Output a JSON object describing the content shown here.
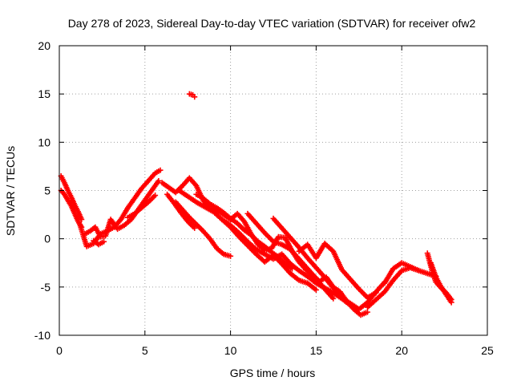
{
  "chart_data": {
    "type": "scatter",
    "title": "Day 278 of 2023, Sidereal Day-to-day VTEC variation (SDTVAR) for receiver ofw2",
    "xlabel": "GPS time / hours",
    "ylabel": "SDTVAR / TECUs",
    "xlim": [
      0,
      25
    ],
    "ylim": [
      -10,
      20
    ],
    "x_ticks": [
      0,
      5,
      10,
      15,
      20,
      25
    ],
    "y_ticks": [
      -10,
      -5,
      0,
      5,
      10,
      15,
      20
    ],
    "grid": true,
    "marker": "+",
    "colors": {
      "series": "#ff0000",
      "grid": "#a0a0a0",
      "frame": "#000000"
    },
    "series": [
      {
        "name": "SDTVAR",
        "tracks": [
          {
            "x": [
              0.1,
              0.3,
              0.5,
              0.7,
              0.9,
              1.1,
              1.3
            ],
            "y": [
              6.5,
              5.8,
              5.0,
              4.3,
              3.5,
              2.8,
              2.0
            ]
          },
          {
            "x": [
              0.1,
              0.3,
              0.5,
              0.7,
              0.9,
              1.1,
              1.3
            ],
            "y": [
              5.0,
              4.6,
              4.0,
              3.4,
              2.6,
              1.8,
              1.2
            ]
          },
          {
            "x": [
              1.2,
              1.6,
              2.0,
              2.4,
              2.8,
              3.2,
              3.6,
              4.0,
              4.4,
              4.8,
              5.2,
              5.6,
              5.9
            ],
            "y": [
              1.5,
              -0.8,
              -0.5,
              0.5,
              0.8,
              1.2,
              2.0,
              3.2,
              4.2,
              5.2,
              6.0,
              6.8,
              7.1
            ]
          },
          {
            "x": [
              1.5,
              1.8,
              2.1,
              2.4,
              2.7,
              3.0,
              3.4,
              3.8,
              4.2,
              4.6,
              5.0,
              5.4,
              5.8
            ],
            "y": [
              0.5,
              0.8,
              1.2,
              0.2,
              0.3,
              2.0,
              1.0,
              1.4,
              2.0,
              3.0,
              4.0,
              5.0,
              6.0
            ]
          },
          {
            "x": [
              2.0,
              2.3,
              2.6
            ],
            "y": [
              -0.2,
              -0.6,
              -0.3
            ]
          },
          {
            "x": [
              4.0,
              4.4,
              4.8,
              5.2,
              5.6
            ],
            "y": [
              2.2,
              2.6,
              3.2,
              3.8,
              4.5
            ]
          },
          {
            "x": [
              6.0,
              6.4,
              6.8,
              7.2,
              7.6,
              8.0,
              8.4,
              8.8,
              9.2,
              9.6,
              10.0,
              10.4,
              10.8,
              11.2,
              11.6,
              12.0,
              12.4,
              12.8,
              13.2,
              13.6,
              14.0,
              14.4,
              14.8,
              15.2,
              15.6,
              16.0,
              16.4,
              16.8,
              17.2,
              17.6,
              18.0
            ],
            "y": [
              5.8,
              5.3,
              4.8,
              5.5,
              6.3,
              5.5,
              4.0,
              3.2,
              3.0,
              2.5,
              2.0,
              2.6,
              1.8,
              0.5,
              -0.6,
              -1.2,
              -1.0,
              0.2,
              0.1,
              -1.3,
              -2.4,
              -3.2,
              -3.8,
              -4.4,
              -4.0,
              -5.0,
              -5.5,
              -6.5,
              -7.3,
              -7.9,
              -7.6
            ]
          },
          {
            "x": [
              6.8,
              7.2,
              7.6,
              8.0,
              8.4,
              8.8,
              9.2,
              9.6,
              10.0
            ],
            "y": [
              3.8,
              3.0,
              2.2,
              1.5,
              0.8,
              0.0,
              -1.0,
              -1.6,
              -1.8
            ]
          },
          {
            "x": [
              7.0,
              7.5,
              8.0,
              8.5,
              9.0,
              9.5,
              10.0,
              10.5,
              11.0,
              11.5,
              12.0,
              12.5,
              13.0,
              13.5,
              14.0,
              14.5,
              15.0,
              15.5,
              16.0,
              16.5,
              17.0,
              17.5,
              18.0,
              18.5,
              19.0
            ],
            "y": [
              5.0,
              4.4,
              3.8,
              3.3,
              2.8,
              2.0,
              1.4,
              0.6,
              -0.3,
              -1.1,
              -1.6,
              -2.1,
              -1.6,
              -2.6,
              -3.3,
              -3.9,
              -4.6,
              -5.1,
              -5.6,
              -6.2,
              -6.9,
              -7.3,
              -6.6,
              -5.5,
              -4.5
            ]
          },
          {
            "x": [
              6.3,
              6.7,
              7.1,
              7.5,
              7.9
            ],
            "y": [
              4.6,
              3.7,
              2.7,
              1.8,
              1.1
            ]
          },
          {
            "x": [
              8.0,
              8.4,
              8.8,
              9.2,
              9.6,
              10.0,
              10.4,
              10.8,
              11.2,
              11.6,
              12.0,
              12.4,
              12.8,
              13.2,
              13.6
            ],
            "y": [
              4.6,
              4.2,
              3.6,
              3.2,
              2.7,
              2.1,
              1.6,
              0.9,
              0.4,
              -0.3,
              -0.8,
              -1.4,
              -1.9,
              -2.6,
              -3.1
            ]
          },
          {
            "x": [
              9.5,
              10.0,
              10.5,
              11.0,
              11.5,
              12.0,
              12.5,
              13.0,
              13.5,
              14.0,
              14.5,
              15.0
            ],
            "y": [
              2.0,
              1.2,
              0.2,
              -0.7,
              -1.6,
              -2.4,
              -1.7,
              -2.6,
              -3.6,
              -4.3,
              -4.6,
              -5.3
            ]
          },
          {
            "x": [
              11.0,
              11.5,
              12.0,
              12.5,
              13.0,
              13.5,
              14.0,
              14.5,
              15.0,
              15.5,
              16.0
            ],
            "y": [
              2.6,
              1.6,
              0.6,
              -0.3,
              -0.6,
              -1.1,
              -2.1,
              -3.1,
              -4.1,
              -5.2,
              -6.2
            ]
          },
          {
            "x": [
              12.5,
              13.0,
              13.5,
              14.0,
              14.5,
              15.0,
              15.5,
              16.0,
              16.5,
              17.0,
              17.5
            ],
            "y": [
              2.1,
              1.1,
              0.1,
              -0.9,
              -2.0,
              -3.0,
              -4.0,
              -5.1,
              -6.1,
              -6.7,
              -7.3
            ]
          },
          {
            "x": [
              14.0,
              14.5,
              15.0,
              15.5,
              16.0,
              16.5,
              17.0,
              17.5,
              18.0,
              18.5
            ],
            "y": [
              -1.3,
              -0.6,
              -2.0,
              -0.5,
              -1.3,
              -3.2,
              -4.2,
              -5.2,
              -6.1,
              -5.6
            ]
          },
          {
            "x": [
              18.0,
              18.5,
              19.0,
              19.5,
              20.0,
              20.5,
              21.0
            ],
            "y": [
              -7.1,
              -6.3,
              -5.5,
              -4.3,
              -3.3,
              -3.0,
              -3.3
            ]
          },
          {
            "x": [
              19.0,
              19.5,
              20.0,
              20.5,
              21.0,
              21.5,
              22.0
            ],
            "y": [
              -4.6,
              -3.1,
              -2.5,
              -2.9,
              -3.3,
              -3.6,
              -3.9
            ]
          },
          {
            "x": [
              21.5,
              21.8,
              22.0,
              22.3,
              22.6,
              22.9
            ],
            "y": [
              -1.5,
              -3.5,
              -4.5,
              -5.1,
              -5.6,
              -6.3
            ]
          },
          {
            "x": [
              21.7,
              22.0,
              22.3,
              22.6,
              22.9
            ],
            "y": [
              -2.5,
              -4.0,
              -5.0,
              -5.8,
              -6.6
            ]
          },
          {
            "x": [
              7.6,
              7.8,
              7.9
            ],
            "y": [
              15.0,
              14.9,
              14.7
            ]
          }
        ]
      }
    ]
  }
}
